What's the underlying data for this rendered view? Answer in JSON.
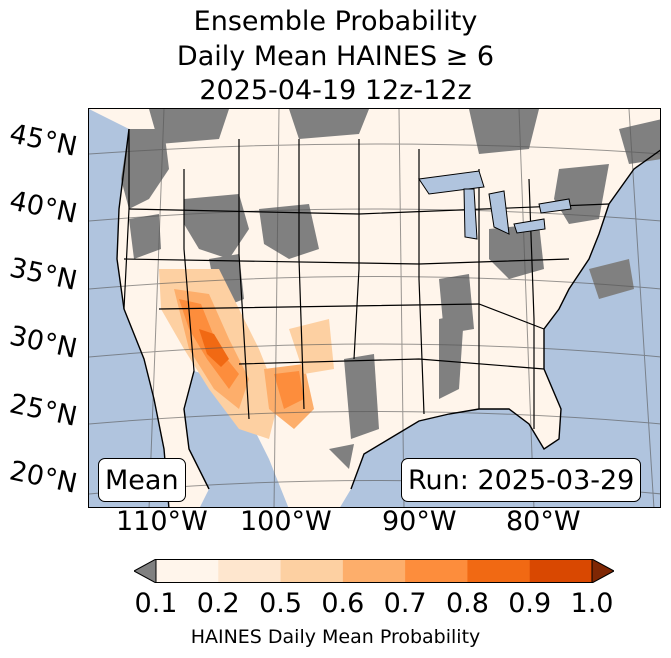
{
  "title": {
    "line1": "Ensemble Probability",
    "line2": "Daily Mean HAINES ≥ 6",
    "line3": "2025-04-19 12z-12z"
  },
  "map": {
    "lat_labels": [
      "45°N",
      "40°N",
      "35°N",
      "30°N",
      "25°N",
      "20°N"
    ],
    "lon_labels": [
      "110°W",
      "100°W",
      "90°W",
      "80°W"
    ],
    "stat_box": "Mean",
    "run_box": "Run: 2025-03-29",
    "colors": {
      "ocean": "#b0c4de",
      "missing": "#808080",
      "under_low": "#808080",
      "over_high": "#7f2704"
    }
  },
  "colorbar": {
    "ticks": [
      "0.1",
      "0.2",
      "0.5",
      "0.6",
      "0.7",
      "0.8",
      "0.9",
      "1.0"
    ],
    "colors": [
      "#fff5eb",
      "#fee6ce",
      "#fdd0a2",
      "#fdae6b",
      "#fd8d3c",
      "#f16913",
      "#d94801"
    ],
    "label": "HAINES Daily Mean Probability"
  }
}
